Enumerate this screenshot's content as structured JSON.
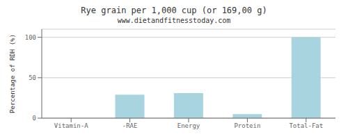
{
  "chart_data": {
    "type": "bar",
    "title": "Rye grain per 1,000 cup (or 169,00 g)",
    "subtitle": "www.dietandfitnesstoday.com",
    "categories": [
      "Vitamin-A",
      "-RAE",
      "Energy",
      "Protein",
      "Total-Fat"
    ],
    "values": [
      0,
      29,
      31,
      5,
      100
    ],
    "color": "#a8d4e0",
    "ylabel": "Percentage of RDH (%)",
    "ylim": [
      0,
      110
    ],
    "yticks": [
      0,
      50,
      100
    ],
    "grid": true
  }
}
